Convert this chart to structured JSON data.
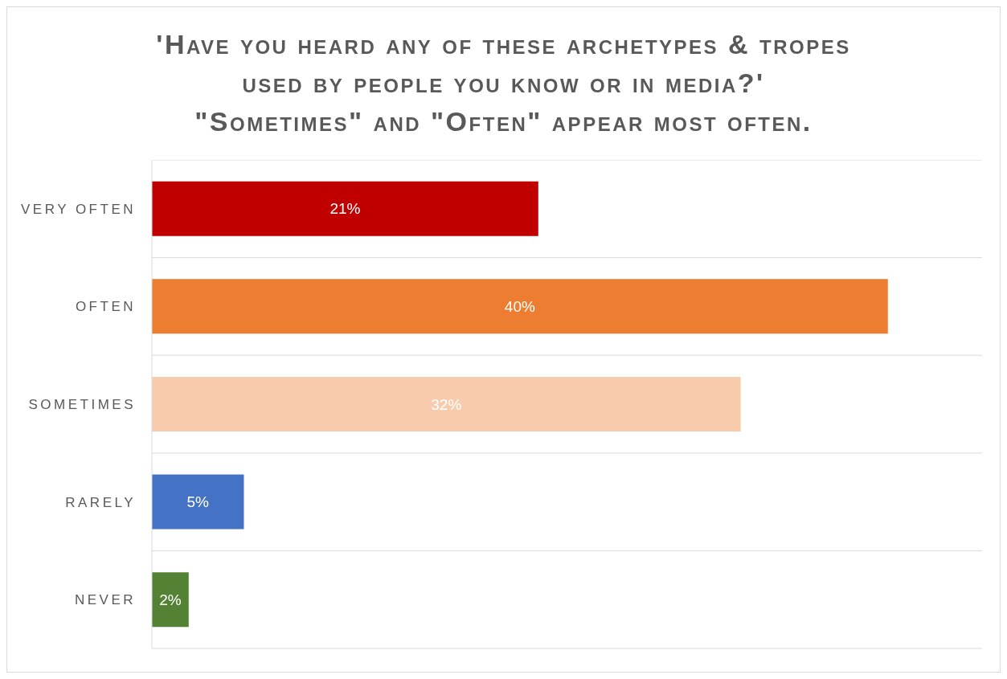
{
  "chart_data": {
    "type": "bar",
    "orientation": "horizontal",
    "title": "'Have you heard any of these archetypes & tropes used by people you know or in media?'",
    "subtitle": "\"Sometimes\" and \"Often\" appear most often.",
    "categories": [
      "VERY OFTEN",
      "OFTEN",
      "SOMETIMES",
      "RARELY",
      "NEVER"
    ],
    "values": [
      21,
      40,
      32,
      5,
      2
    ],
    "colors": [
      "#c00000",
      "#ed7d31",
      "#f8cbad",
      "#4472c4",
      "#548235"
    ],
    "value_labels": [
      "21%",
      "40%",
      "32%",
      "5%",
      "2%"
    ],
    "grid": "y"
  }
}
